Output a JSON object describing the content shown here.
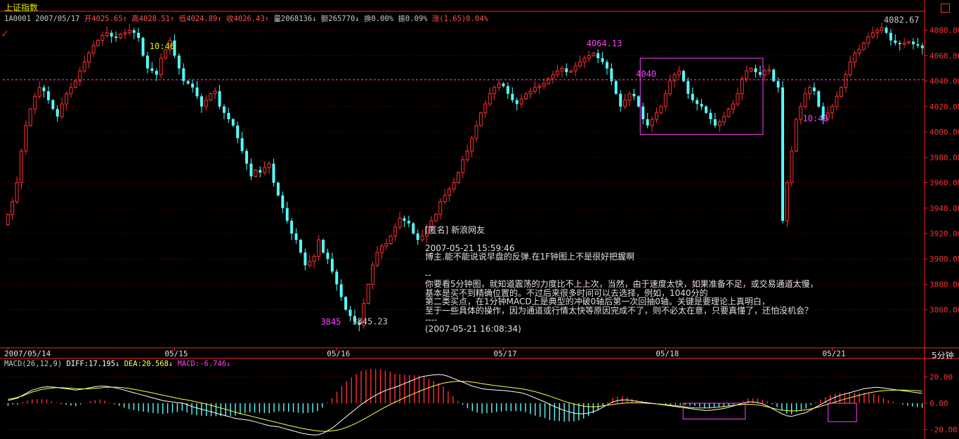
{
  "window": {
    "title": "上证指数",
    "code": "1A0001",
    "date": "2007/05/17",
    "stats": [
      {
        "label": "开",
        "value": "4025.65",
        "arrow": "↑",
        "color": "#ff5050"
      },
      {
        "label": "高",
        "value": "4028.51",
        "arrow": "↑",
        "color": "#ff5050"
      },
      {
        "label": "低",
        "value": "4024.89",
        "arrow": "↑",
        "color": "#ff5050"
      },
      {
        "label": "收",
        "value": "4026.43",
        "arrow": "↑",
        "color": "#ff5050"
      },
      {
        "label": "量",
        "value": "2068136",
        "arrow": "↓",
        "color": "#c8c8c8"
      },
      {
        "label": "额",
        "value": "265770",
        "arrow": "↓",
        "color": "#c8c8c8"
      },
      {
        "label": "换",
        "value": "0.00%",
        "arrow": "",
        "color": "#c8c8c8"
      },
      {
        "label": "振",
        "value": "0.09%",
        "arrow": "",
        "color": "#c8c8c8"
      },
      {
        "label": "涨",
        "value": "(1.65)0.04%",
        "arrow": "",
        "color": "#ff5050"
      }
    ],
    "period_label": "5分钟",
    "close_icon": "close-square-icon"
  },
  "chart_data": [
    {
      "type": "candlestick",
      "panel": "price",
      "ylim": [
        3830,
        4095
      ],
      "y_ticks": [
        "4080.00",
        "4060.00",
        "4040.00",
        "4020.00",
        "4000.00",
        "3980.00",
        "3960.00",
        "3940.00",
        "3920.00",
        "3900.00",
        "3880.00",
        "3860.00"
      ],
      "y_tick_values": [
        4080,
        4060,
        4040,
        4020,
        4000,
        3980,
        3960,
        3940,
        3920,
        3900,
        3880,
        3860
      ],
      "x_tick_labels": [
        "2007/05/14",
        "05/15",
        "05/16",
        "05/17",
        "05/18",
        "05/21"
      ],
      "reference_line": 4041,
      "colors": {
        "up": "#ff3030",
        "down": "#54ffff",
        "ref": "#ff40ff",
        "grid": "#800000"
      },
      "closes": [
        3935,
        3945,
        3960,
        3985,
        4005,
        4018,
        4028,
        4035,
        4032,
        4025,
        4018,
        4012,
        4022,
        4030,
        4035,
        4040,
        4048,
        4055,
        4062,
        4068,
        4072,
        4076,
        4078,
        4075,
        4074,
        4077,
        4078,
        4080,
        4078,
        4074,
        4060,
        4050,
        4048,
        4045,
        4058,
        4065,
        4072,
        4060,
        4050,
        4040,
        4038,
        4035,
        4028,
        4020,
        4025,
        4030,
        4032,
        4020,
        4015,
        4010,
        4005,
        3995,
        3985,
        3975,
        3965,
        3970,
        3968,
        3972,
        3975,
        3960,
        3950,
        3940,
        3930,
        3920,
        3915,
        3905,
        3895,
        3898,
        3902,
        3915,
        3905,
        3900,
        3890,
        3880,
        3870,
        3860,
        3855,
        3850,
        3848,
        3865,
        3880,
        3895,
        3905,
        3910,
        3912,
        3918,
        3925,
        3932,
        3930,
        3928,
        3920,
        3915,
        3918,
        3925,
        3930,
        3935,
        3945,
        3950,
        3955,
        3960,
        3968,
        3978,
        3985,
        3995,
        4005,
        4015,
        4022,
        4030,
        4035,
        4038,
        4036,
        4030,
        4025,
        4022,
        4026,
        4030,
        4032,
        4035,
        4036,
        4038,
        4042,
        4045,
        4048,
        4050,
        4047,
        4048,
        4052,
        4055,
        4058,
        4060,
        4062,
        4058,
        4055,
        4050,
        4040,
        4030,
        4020,
        4025,
        4030,
        4028,
        4020,
        4010,
        4005,
        4010,
        4015,
        4020,
        4030,
        4040,
        4045,
        4048,
        4040,
        4030,
        4025,
        4022,
        4020,
        4015,
        4010,
        4005,
        4008,
        4012,
        4018,
        4022,
        4030,
        4042,
        4048,
        4050,
        4047,
        4045,
        4048,
        4049,
        4040,
        4035,
        3930,
        3960,
        3985,
        4010,
        4020,
        4030,
        4035,
        4032,
        4020,
        4010,
        4015,
        4020,
        4028,
        4035,
        4045,
        4055,
        4062,
        4065,
        4070,
        4075,
        4078,
        4080,
        4082,
        4078,
        4072,
        4070,
        4069,
        4070,
        4071,
        4069,
        4068,
        4066
      ],
      "annotations": [
        {
          "text": "10:46",
          "value": 4062,
          "index": 33,
          "color": "#e8e800"
        },
        {
          "text": "4064.13",
          "value": 4064.13,
          "index": 130,
          "color": "#ff40ff"
        },
        {
          "text": "4040",
          "value": 4040,
          "index": 141,
          "color": "#ff40ff"
        },
        {
          "text": "10:40",
          "value": 4005,
          "index": 178,
          "color": "#ff40ff"
        },
        {
          "text": "3845",
          "value": 3845,
          "index": 71,
          "color": "#ff40ff"
        },
        {
          "text": "4082.67",
          "value": 4082.67,
          "index": 196,
          "color": "#c8c8c8"
        },
        {
          "text": "3845.23",
          "value": 3845.23,
          "index": 78,
          "color": "#c8c8c8"
        }
      ],
      "highlight_box": {
        "from_index": 141,
        "to_index": 167,
        "low": 3998,
        "high": 4058
      }
    },
    {
      "type": "macd",
      "panel": "indicator",
      "params": "MACD(26,12,9)",
      "readouts": [
        {
          "label": "DIFF",
          "value": "17.195",
          "arrow": "↓",
          "color": "#ffffff"
        },
        {
          "label": "DEA",
          "value": "20.568",
          "arrow": "↓",
          "color": "#ffff60"
        },
        {
          "label": "MACD",
          "value": "-6.746",
          "arrow": "↓",
          "color": "#ff40ff"
        }
      ],
      "ylim": [
        -25,
        25
      ],
      "y_ticks": [
        "20.00",
        "0.00",
        "-20.00"
      ],
      "y_tick_values": [
        20,
        0,
        -20
      ],
      "colors": {
        "diff": "#ffffff",
        "dea": "#ffff40",
        "pos": "#ff3030",
        "neg": "#54ffff",
        "box": "#ff40ff"
      },
      "diff": [
        2,
        3,
        4,
        6,
        8,
        10,
        11,
        12,
        12.5,
        12.3,
        12,
        11.5,
        11,
        10.5,
        10,
        10.5,
        11,
        11.8,
        12.5,
        13,
        13,
        12.5,
        11.8,
        11,
        10,
        9,
        8,
        7,
        6,
        5,
        4,
        3,
        2,
        1.5,
        1,
        0.5,
        0.2,
        -1,
        -2.5,
        -3.5,
        -4.5,
        -5.5,
        -6.5,
        -7.5,
        -8.5,
        -9.5,
        -10.5,
        -11.5,
        -12,
        -12.5,
        -13,
        -14,
        -15,
        -16,
        -17,
        -17.5,
        -18,
        -19,
        -20,
        -21,
        -22,
        -23,
        -23.5,
        -24,
        -24,
        -23,
        -21,
        -19,
        -16,
        -13,
        -10,
        -7,
        -4,
        -1,
        1.5,
        4,
        6,
        8,
        9.5,
        11,
        12,
        13.5,
        15,
        16.5,
        18,
        19.5,
        20.5,
        21,
        21.5,
        21.8,
        21.5,
        20.5,
        19,
        17.5,
        16,
        14.5,
        13,
        12,
        11,
        10.5,
        10.2,
        10,
        9.8,
        9.5,
        9,
        8.5,
        8,
        7,
        5.5,
        4,
        2.5,
        1,
        -1,
        -2.5,
        -4,
        -5.5,
        -6.5,
        -7.5,
        -8,
        -8,
        -7.5,
        -6.5,
        -5,
        -3,
        -1,
        1,
        2,
        2.5,
        2.5,
        2,
        1.5,
        1,
        0.5,
        0,
        -0.5,
        -1,
        -1.5,
        -2,
        -2.5,
        -3,
        -3.5,
        -4,
        -4.5,
        -5,
        -5.5,
        -5.5,
        -5,
        -4.5,
        -4,
        -3,
        -2,
        -1,
        0,
        1,
        1,
        0.5,
        -0.5,
        -2,
        -4,
        -6,
        -8,
        -9.5,
        -10,
        -9,
        -8,
        -7,
        -5,
        -3,
        -1,
        1,
        3,
        4.5,
        6,
        7,
        8,
        9,
        10,
        11,
        11.5,
        12,
        12,
        11.5,
        11,
        10.5,
        10,
        9.5,
        9,
        8.5,
        8,
        7.5
      ],
      "dea": [
        3,
        3.5,
        4.5,
        5.5,
        7,
        8.5,
        9.5,
        10.5,
        11,
        11.5,
        11.8,
        11.8,
        11.6,
        11.4,
        11.1,
        10.9,
        10.9,
        11,
        11.3,
        11.6,
        12,
        12.2,
        12.2,
        12,
        11.7,
        11.2,
        10.6,
        9.9,
        9.2,
        8.5,
        7.7,
        6.9,
        6.1,
        5.3,
        4.6,
        3.8,
        3.1,
        2.5,
        1.8,
        1,
        0.2,
        -0.7,
        -1.6,
        -2.6,
        -3.6,
        -4.6,
        -5.7,
        -6.8,
        -7.8,
        -8.7,
        -9.6,
        -10.5,
        -11.4,
        -12.3,
        -13.2,
        -14.1,
        -15,
        -15.9,
        -16.8,
        -17.6,
        -18.4,
        -19.2,
        -19.9,
        -20.5,
        -21,
        -21.3,
        -21.3,
        -21,
        -20.4,
        -19.5,
        -18.3,
        -16.8,
        -15.1,
        -13.2,
        -11.2,
        -9.1,
        -7,
        -4.9,
        -2.9,
        -1,
        0.8,
        2.5,
        4.2,
        5.8,
        7.4,
        9,
        10.4,
        11.8,
        13.1,
        14.2,
        15.2,
        15.9,
        16.4,
        16.6,
        16.6,
        16.4,
        16,
        15.5,
        14.9,
        14.3,
        13.8,
        13.3,
        12.9,
        12.4,
        12,
        11.5,
        11,
        10.4,
        9.6,
        8.7,
        7.7,
        6.6,
        5.4,
        4.1,
        2.8,
        1.5,
        0.4,
        -0.6,
        -1.5,
        -2.2,
        -2.6,
        -2.7,
        -2.5,
        -2,
        -1.5,
        -1,
        -0.5,
        -0.1,
        0.2,
        0.3,
        0.3,
        0.2,
        0,
        -0.2,
        -0.5,
        -0.8,
        -1.1,
        -1.5,
        -1.9,
        -2.3,
        -2.8,
        -3.2,
        -3.5,
        -3.6,
        -3.6,
        -3.5,
        -3.2,
        -2.9,
        -2.5,
        -2,
        -1.6,
        -1.2,
        -0.9,
        -0.8,
        -0.9,
        -1.3,
        -1.9,
        -2.7,
        -3.6,
        -4.5,
        -5.2,
        -5.6,
        -5.8,
        -5.8,
        -5.5,
        -5,
        -4.3,
        -3.4,
        -2.4,
        -1.3,
        -0.2,
        0.9,
        2,
        3.1,
        4.1,
        5.1,
        6.1,
        7,
        7.8,
        8.5,
        9.1,
        9.5,
        9.8,
        9.9,
        10,
        10,
        9.9,
        9.7,
        9.5,
        9.2
      ],
      "highlight_boxes": [
        {
          "from_index": 140,
          "to_index": 152,
          "low": -12,
          "high": 0
        },
        {
          "from_index": 170,
          "to_index": 175,
          "low": -14,
          "high": 0
        }
      ]
    }
  ],
  "comment": {
    "lines": [
      "[匿名] 新浪网友",
      "",
      "2007-05-21 15:59:46",
      "博主.能不能说说早盘的反弹.在1F钟图上不是很好把握啊",
      "",
      "--",
      "你要看5分钟图，就知道震荡的力度比不上上次，当然，由于速度太快，如果准备不足，或交易通道太慢，",
      "基本是买不到精确位置的。不过后来很多时间可以去选择，例如，1040分的",
      "第二类买点，在1分钟MACD上是典型的冲破0轴后第一次回抽0轴。关键是要理论上真明白，",
      "至于一些具体的操作，因为通道或行情太快等原因完成不了，则不必太在意，只要真懂了，还怕没机会？",
      "----",
      "(2007-05-21 16:08:34)"
    ]
  }
}
